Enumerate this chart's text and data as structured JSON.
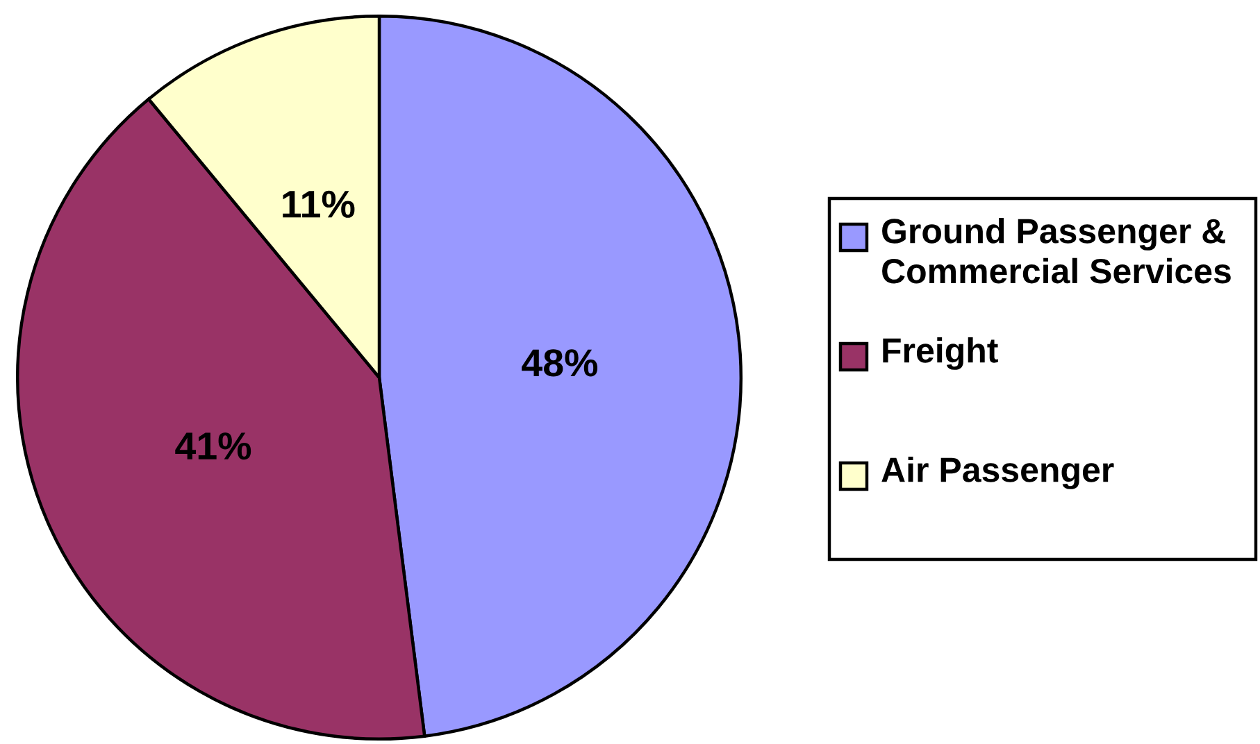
{
  "chart_data": {
    "type": "pie",
    "categories": [
      "Ground Passenger & Commercial Services",
      "Freight",
      "Air Passenger"
    ],
    "values": [
      48,
      41,
      11
    ],
    "colors": [
      "#9999ff",
      "#993366",
      "#ffffcc"
    ],
    "value_labels": [
      "48%",
      "41%",
      "11%"
    ],
    "legend": "right"
  }
}
